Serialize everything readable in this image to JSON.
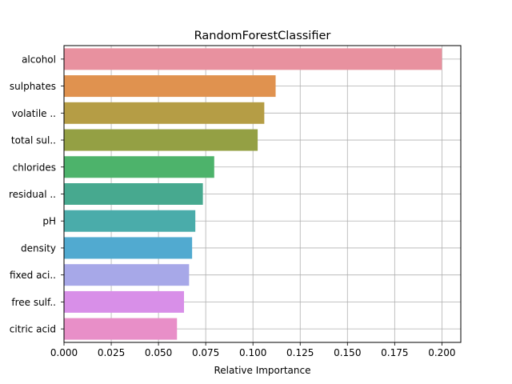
{
  "chart_data": {
    "type": "bar",
    "orientation": "horizontal",
    "title": "RandomForestClassifier",
    "xlabel": "Relative Importance",
    "ylabel": "",
    "xlim": [
      0,
      0.21
    ],
    "xticks": [
      0.0,
      0.025,
      0.05,
      0.075,
      0.1,
      0.125,
      0.15,
      0.175,
      0.2
    ],
    "xtick_labels": [
      "0.000",
      "0.025",
      "0.050",
      "0.075",
      "0.100",
      "0.125",
      "0.150",
      "0.175",
      "0.200"
    ],
    "grid": true,
    "categories": [
      "alcohol",
      "sulphates",
      "volatile ..",
      "total sul..",
      "chlorides",
      "residual ..",
      "pH",
      "density",
      "fixed aci..",
      "free sulf..",
      "citric acid"
    ],
    "values": [
      0.2,
      0.112,
      0.106,
      0.1025,
      0.0795,
      0.0735,
      0.0695,
      0.0678,
      0.0662,
      0.0635,
      0.0598
    ],
    "colors": [
      "#e8919f",
      "#e0924f",
      "#b59d45",
      "#94a044",
      "#4db36b",
      "#47a98f",
      "#4aacaa",
      "#51aad0",
      "#a7a8e8",
      "#d88fe8",
      "#e88fc8"
    ]
  }
}
